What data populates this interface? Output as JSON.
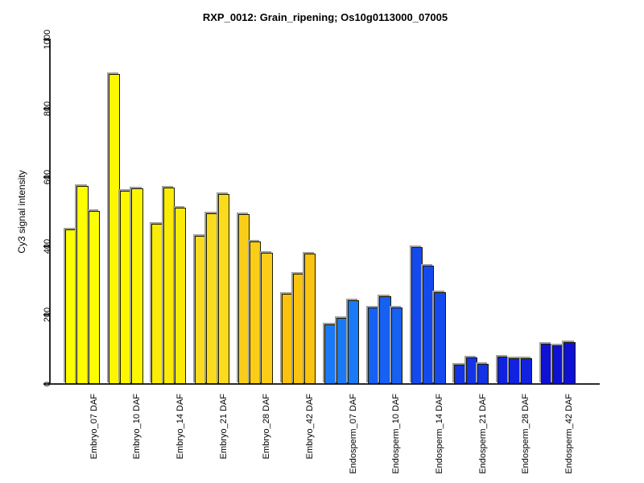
{
  "chart_data": {
    "type": "bar",
    "title": "RXP_0012: Grain_ripening; Os10g0113000_07005",
    "xlabel": "",
    "ylabel": "Cy3 signal intensity",
    "ylim": [
      0,
      1000
    ],
    "yticks": [
      0,
      200,
      400,
      600,
      800,
      1000
    ],
    "grid": false,
    "legend_position": "none",
    "bars_per_group": 3,
    "bar_border_color": "#1c1c00",
    "bar_shadow_color": "#9e9e9e",
    "groups": [
      {
        "label": "Embryo_07 DAF",
        "color": "#fefe02",
        "values": [
          448,
          575,
          503
        ]
      },
      {
        "label": "Embryo_10 DAF",
        "color": "#fdf702",
        "values": [
          900,
          560,
          567
        ]
      },
      {
        "label": "Embryo_14 DAF",
        "color": "#fbeb08",
        "values": [
          465,
          570,
          512
        ]
      },
      {
        "label": "Embryo_21 DAF",
        "color": "#fbdb1e",
        "values": [
          430,
          495,
          552
        ]
      },
      {
        "label": "Embryo_28 DAF",
        "color": "#face18",
        "values": [
          492,
          413,
          380
        ]
      },
      {
        "label": "Embryo_42 DAF",
        "color": "#f9c310",
        "values": [
          261,
          320,
          379
        ]
      },
      {
        "label": "Endosperm_07 DAF",
        "color": "#1a79f7",
        "values": [
          173,
          191,
          243
        ]
      },
      {
        "label": "Endosperm_10 DAF",
        "color": "#1660f2",
        "values": [
          223,
          255,
          222
        ]
      },
      {
        "label": "Endosperm_14 DAF",
        "color": "#144aed",
        "values": [
          398,
          343,
          266
        ]
      },
      {
        "label": "Endosperm_21 DAF",
        "color": "#1233e6",
        "values": [
          56,
          76,
          58
        ]
      },
      {
        "label": "Endosperm_28 DAF",
        "color": "#1021df",
        "values": [
          80,
          75,
          75
        ]
      },
      {
        "label": "Endosperm_42 DAF",
        "color": "#0e11d4",
        "values": [
          117,
          113,
          122
        ]
      }
    ]
  }
}
